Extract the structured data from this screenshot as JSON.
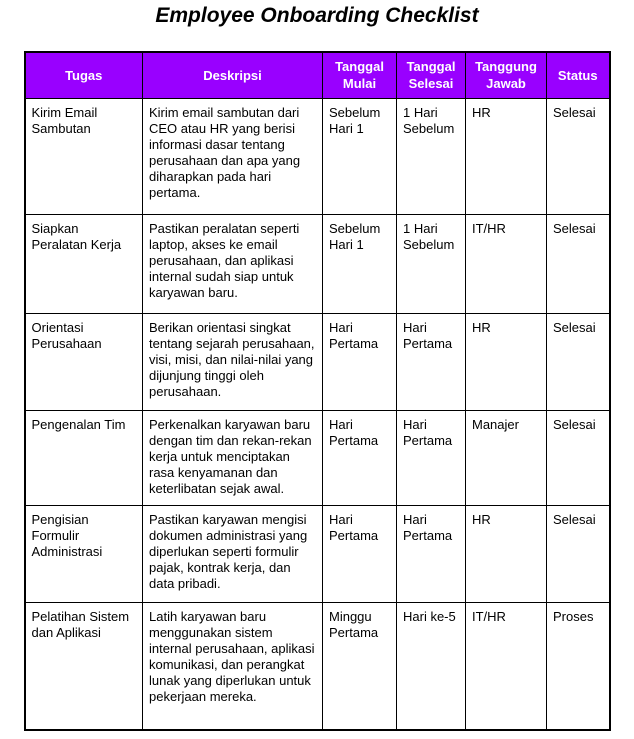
{
  "page": {
    "title": "Employee Onboarding Checklist"
  },
  "colors": {
    "header_bg": "#9900ff",
    "header_text": "#ffffff",
    "border": "#000000",
    "body_text": "#000000",
    "page_bg": "#ffffff"
  },
  "table": {
    "headers": [
      "Tugas",
      "Deskripsi",
      "Tanggal Mulai",
      "Tanggal Selesai",
      "Tanggung Jawab",
      "Status"
    ],
    "rows": [
      {
        "tugas": "Kirim Email Sambutan",
        "deskripsi": "Kirim email sambutan dari CEO atau HR yang berisi informasi dasar tentang perusahaan dan apa yang diharapkan pada hari pertama.",
        "tanggal_mulai": "Sebelum Hari 1",
        "tanggal_selesai": "1 Hari Sebelum",
        "tanggung_jawab": "HR",
        "status": "Selesai"
      },
      {
        "tugas": "Siapkan Peralatan Kerja",
        "deskripsi": "Pastikan peralatan seperti laptop, akses ke email perusahaan, dan aplikasi internal sudah siap untuk karyawan baru.",
        "tanggal_mulai": "Sebelum Hari 1",
        "tanggal_selesai": "1 Hari Sebelum",
        "tanggung_jawab": "IT/HR",
        "status": "Selesai"
      },
      {
        "tugas": "Orientasi Perusahaan",
        "deskripsi": "Berikan orientasi singkat tentang sejarah perusahaan, visi, misi, dan nilai-nilai yang dijunjung tinggi oleh perusahaan.",
        "tanggal_mulai": "Hari Pertama",
        "tanggal_selesai": "Hari Pertama",
        "tanggung_jawab": "HR",
        "status": "Selesai"
      },
      {
        "tugas": "Pengenalan Tim",
        "deskripsi": "Perkenalkan karyawan baru dengan tim dan rekan-rekan kerja untuk menciptakan rasa kenyamanan dan keterlibatan sejak awal.",
        "tanggal_mulai": "Hari Pertama",
        "tanggal_selesai": "Hari Pertama",
        "tanggung_jawab": "Manajer",
        "status": "Selesai"
      },
      {
        "tugas": "Pengisian Formulir Administrasi",
        "deskripsi": "Pastikan karyawan mengisi dokumen administrasi yang diperlukan seperti formulir pajak, kontrak kerja, dan data pribadi.",
        "tanggal_mulai": "Hari Pertama",
        "tanggal_selesai": "Hari Pertama",
        "tanggung_jawab": "HR",
        "status": "Selesai"
      },
      {
        "tugas": "Pelatihan Sistem dan Aplikasi",
        "deskripsi": "Latih karyawan baru menggunakan sistem internal perusahaan, aplikasi komunikasi, dan perangkat lunak yang diperlukan untuk pekerjaan mereka.",
        "tanggal_mulai": "Minggu Pertama",
        "tanggal_selesai": "Hari ke-5",
        "tanggung_jawab": "IT/HR",
        "status": "Proses"
      }
    ]
  }
}
